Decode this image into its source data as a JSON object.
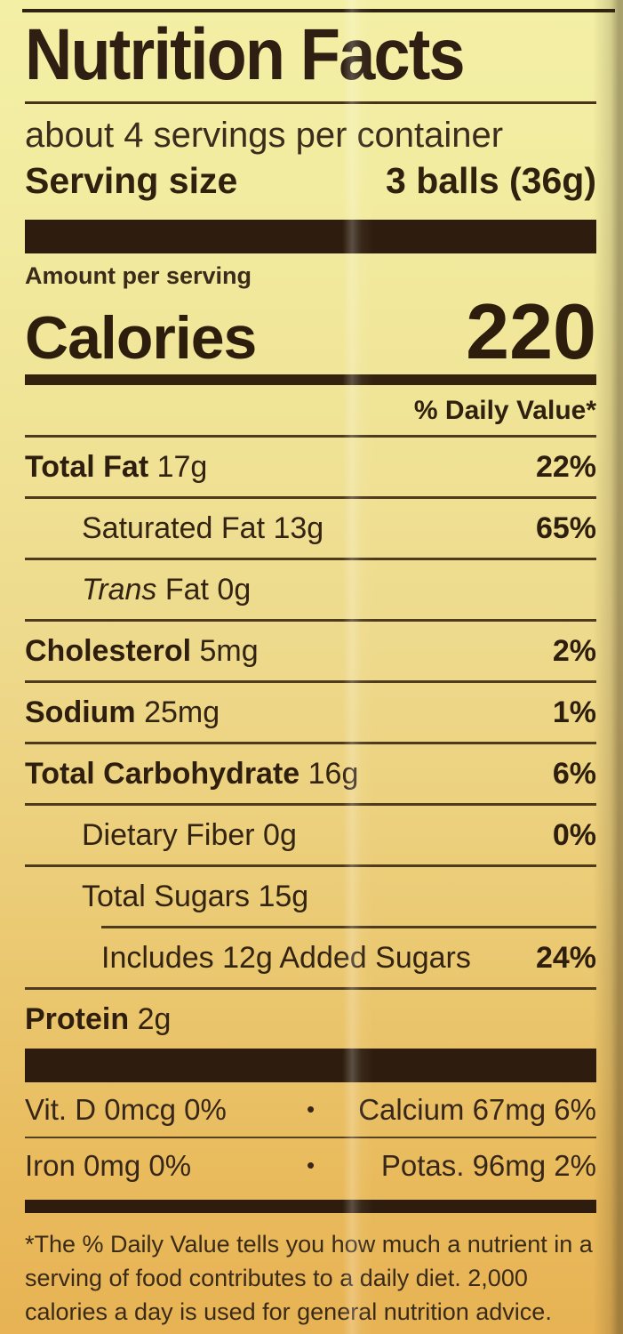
{
  "label": {
    "title": "Nutrition Facts",
    "servings_per_container": "about 4 servings per container",
    "serving_size_label": "Serving size",
    "serving_size_value": "3 balls (36g)",
    "amount_per_serving": "Amount per serving",
    "calories_label": "Calories",
    "calories_value": "220",
    "daily_value_header": "% Daily Value*",
    "nutrients": [
      {
        "italic": "",
        "name": "Total Fat",
        "amount": "17g",
        "dv": "22%",
        "bold": true,
        "indent": 0,
        "rule_indent": false
      },
      {
        "italic": "",
        "name": "Saturated Fat",
        "amount": "13g",
        "dv": "65%",
        "bold": false,
        "indent": 1,
        "rule_indent": false
      },
      {
        "italic": "Trans",
        "name": "Fat",
        "amount": "0g",
        "dv": "",
        "bold": false,
        "indent": 1,
        "rule_indent": false
      },
      {
        "italic": "",
        "name": "Cholesterol",
        "amount": "5mg",
        "dv": "2%",
        "bold": true,
        "indent": 0,
        "rule_indent": false
      },
      {
        "italic": "",
        "name": "Sodium",
        "amount": "25mg",
        "dv": "1%",
        "bold": true,
        "indent": 0,
        "rule_indent": false
      },
      {
        "italic": "",
        "name": "Total Carbohydrate",
        "amount": "16g",
        "dv": "6%",
        "bold": true,
        "indent": 0,
        "rule_indent": false
      },
      {
        "italic": "",
        "name": "Dietary Fiber",
        "amount": "0g",
        "dv": "0%",
        "bold": false,
        "indent": 1,
        "rule_indent": false
      },
      {
        "italic": "",
        "name": "Total Sugars",
        "amount": "15g",
        "dv": "",
        "bold": false,
        "indent": 1,
        "rule_indent": false
      },
      {
        "italic": "",
        "name": "Includes 12g Added Sugars",
        "amount": "",
        "dv": "24%",
        "bold": false,
        "indent": 2,
        "rule_indent": true
      },
      {
        "italic": "",
        "name": "Protein",
        "amount": "2g",
        "dv": "",
        "bold": true,
        "indent": 0,
        "rule_indent": false
      }
    ],
    "separator_dot": "•",
    "micronutrients": [
      {
        "left": "Vit. D 0mcg 0%",
        "right": "Calcium 67mg 6%"
      },
      {
        "left": "Iron 0mg 0%",
        "right": "Potas. 96mg 2%"
      }
    ],
    "footnote": "*The % Daily Value tells you how much a nutrient in a serving of food contributes to a daily diet. 2,000 calories a day is used for general nutrition advice."
  },
  "colors": {
    "background_top": "#f3efa5",
    "background_bottom": "#e7b354",
    "ink": "#33241a",
    "heavy_bar": "#2e1d0e"
  }
}
